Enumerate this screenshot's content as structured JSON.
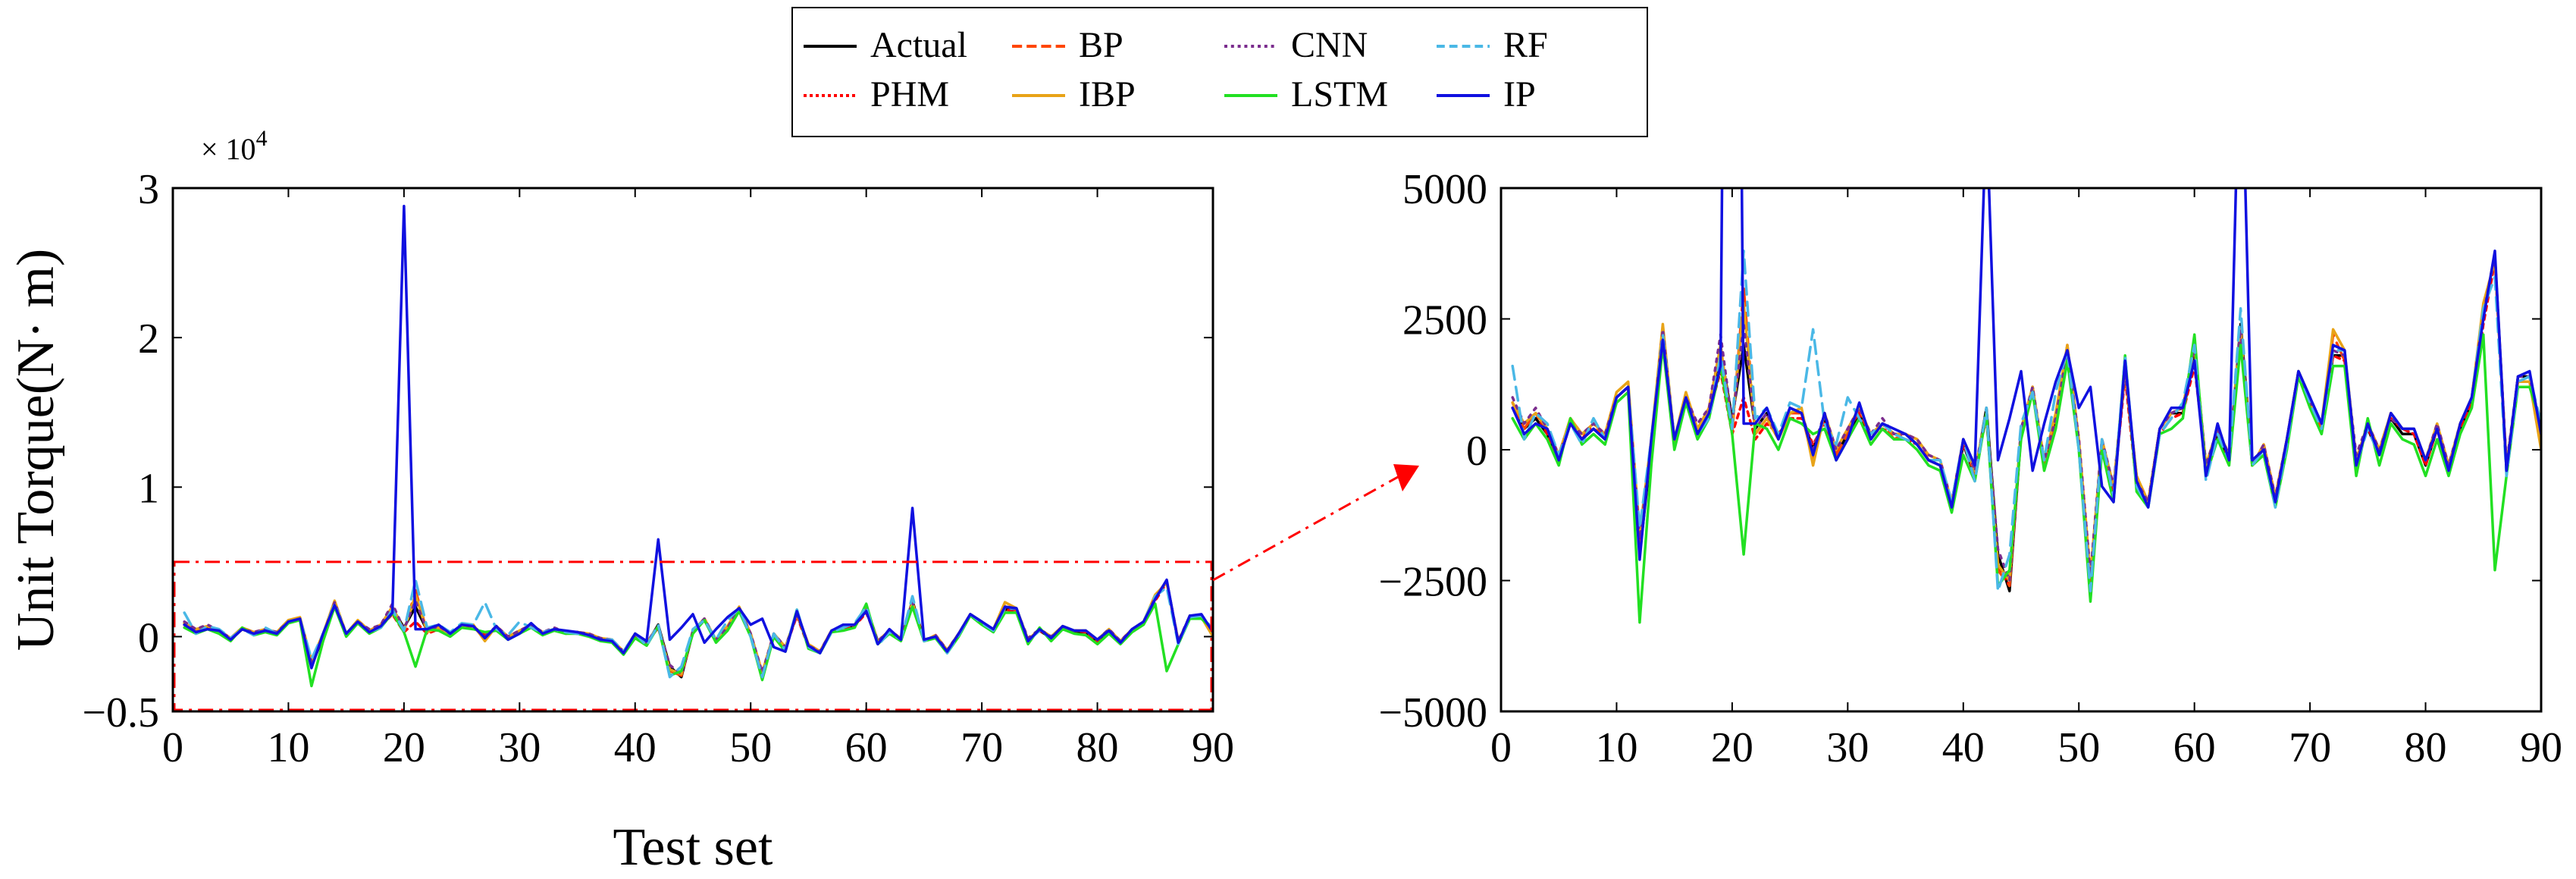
{
  "chart_data": [
    {
      "type": "line",
      "panel": "full",
      "xlabel": "Test set",
      "ylabel": "Unit Torque(N· m)",
      "y_multiplier": "× 10",
      "y_multiplier_exp": "4",
      "xlim": [
        0,
        90
      ],
      "ylim": [
        -5000,
        30000
      ],
      "xticks": [
        0,
        10,
        20,
        30,
        40,
        50,
        60,
        70,
        80,
        90
      ],
      "xtick_labels": [
        "0",
        "10",
        "20",
        "30",
        "40",
        "50",
        "60",
        "70",
        "80",
        "90"
      ],
      "yticks": [
        -5000,
        0,
        10000,
        20000,
        30000
      ],
      "ytick_labels": [
        "−0.5",
        "0",
        "1",
        "2",
        "3"
      ],
      "grid": false,
      "zoom_region": {
        "ymin": -5000,
        "ymax": 5000
      }
    },
    {
      "type": "line",
      "panel": "zoom",
      "xlim": [
        0,
        90
      ],
      "ylim": [
        -5000,
        5000
      ],
      "xticks": [
        0,
        10,
        20,
        30,
        40,
        50,
        60,
        70,
        80,
        90
      ],
      "xtick_labels": [
        "0",
        "10",
        "20",
        "30",
        "40",
        "50",
        "60",
        "70",
        "80",
        "90"
      ],
      "yticks": [
        -5000,
        -2500,
        0,
        2500,
        5000
      ],
      "ytick_labels": [
        "−5000",
        "−2500",
        "0",
        "2500",
        "5000"
      ],
      "grid": false
    }
  ],
  "shared_series": {
    "x": [
      1,
      2,
      3,
      4,
      5,
      6,
      7,
      8,
      9,
      10,
      11,
      12,
      13,
      14,
      15,
      16,
      17,
      18,
      19,
      20,
      21,
      22,
      23,
      24,
      25,
      26,
      27,
      28,
      29,
      30,
      31,
      32,
      33,
      34,
      35,
      36,
      37,
      38,
      39,
      40,
      41,
      42,
      43,
      44,
      45,
      46,
      47,
      48,
      49,
      50,
      51,
      52,
      53,
      54,
      55,
      56,
      57,
      58,
      59,
      60,
      61,
      62,
      63,
      64,
      65,
      66,
      67,
      68,
      69,
      70,
      71,
      72,
      73,
      74,
      75,
      76,
      77,
      78,
      79,
      80,
      81,
      82,
      83,
      84,
      85,
      86,
      87,
      88,
      89,
      90
    ],
    "series": [
      {
        "name": "Actual",
        "color": "#000000",
        "dash": "",
        "values": [
          800,
          400,
          600,
          300,
          -200,
          500,
          200,
          400,
          200,
          1000,
          1200,
          -2000,
          0,
          2200,
          100,
          1000,
          300,
          800,
          1900,
          600,
          2000,
          400,
          700,
          200,
          800,
          700,
          0,
          600,
          -100,
          300,
          700,
          200,
          500,
          300,
          300,
          100,
          -200,
          -300,
          -1100,
          100,
          -500,
          800,
          -2000,
          -2700,
          300,
          1200,
          -300,
          500,
          1900,
          100,
          -2600,
          100,
          -800,
          1500,
          -600,
          -1000,
          400,
          700,
          700,
          1800,
          -400,
          300,
          -200,
          2400,
          -200,
          0,
          -1000,
          100,
          1500,
          1000,
          400,
          1800,
          1800,
          -200,
          400,
          -100,
          600,
          300,
          300,
          -300,
          400,
          -400,
          400,
          900,
          2600,
          3700,
          -400,
          1400,
          1400,
          300
        ]
      },
      {
        "name": "PHM",
        "color": "#ff0000",
        "dash": "6,6",
        "values": [
          800,
          500,
          700,
          300,
          -200,
          500,
          200,
          500,
          300,
          1000,
          1200,
          -1800,
          100,
          2200,
          200,
          1000,
          400,
          700,
          1500,
          300,
          1000,
          200,
          500,
          300,
          600,
          600,
          100,
          500,
          0,
          400,
          700,
          300,
          400,
          300,
          200,
          100,
          -200,
          -300,
          -1000,
          100,
          -400,
          600,
          -2200,
          -2600,
          300,
          1200,
          -300,
          600,
          1900,
          200,
          -2400,
          200,
          -800,
          1400,
          -700,
          -1000,
          300,
          600,
          700,
          1600,
          -300,
          400,
          -200,
          2100,
          -300,
          100,
          -900,
          200,
          1500,
          900,
          500,
          1800,
          1700,
          -200,
          400,
          0,
          600,
          400,
          300,
          -300,
          400,
          -400,
          400,
          900,
          2400,
          3600,
          -300,
          1300,
          1300,
          300
        ]
      },
      {
        "name": "BP",
        "color": "#ff4500",
        "dash": "22,10",
        "values": [
          900,
          400,
          700,
          400,
          -100,
          600,
          300,
          400,
          300,
          1000,
          1200,
          -1900,
          100,
          2300,
          100,
          1000,
          400,
          800,
          2000,
          300,
          3100,
          300,
          600,
          200,
          700,
          700,
          -200,
          700,
          -100,
          300,
          800,
          200,
          500,
          200,
          300,
          200,
          -200,
          -300,
          -1100,
          200,
          -500,
          700,
          -2300,
          -2600,
          400,
          1100,
          -300,
          600,
          2000,
          100,
          -2500,
          100,
          -700,
          1500,
          -500,
          -1000,
          400,
          700,
          800,
          2000,
          -300,
          400,
          -100,
          2300,
          -300,
          100,
          -1000,
          200,
          1500,
          900,
          400,
          2200,
          1700,
          -200,
          500,
          0,
          700,
          400,
          400,
          -200,
          400,
          -300,
          500,
          1000,
          2700,
          3700,
          -300,
          1300,
          1300,
          400
        ]
      },
      {
        "name": "IBP",
        "color": "#e8a317",
        "dash": "",
        "values": [
          900,
          500,
          700,
          400,
          -100,
          600,
          300,
          500,
          300,
          1100,
          1300,
          -1600,
          200,
          2400,
          200,
          1100,
          400,
          800,
          2000,
          400,
          2800,
          300,
          600,
          200,
          700,
          800,
          -300,
          700,
          0,
          400,
          800,
          300,
          500,
          300,
          300,
          200,
          -100,
          -200,
          -1000,
          200,
          -400,
          700,
          -2200,
          -2500,
          400,
          1200,
          -200,
          700,
          2000,
          200,
          -2400,
          200,
          -700,
          1500,
          -500,
          -1000,
          400,
          700,
          800,
          2000,
          -300,
          400,
          -100,
          2300,
          -300,
          100,
          -900,
          200,
          1500,
          900,
          500,
          2300,
          1900,
          -200,
          500,
          0,
          700,
          400,
          400,
          -200,
          500,
          -300,
          500,
          1000,
          2800,
          3600,
          -300,
          1300,
          1300,
          0
        ]
      },
      {
        "name": "CNN",
        "color": "#7b2d8e",
        "dash": "4,8",
        "values": [
          1000,
          500,
          800,
          400,
          -100,
          500,
          300,
          500,
          300,
          1000,
          1200,
          -1700,
          100,
          2300,
          200,
          1000,
          500,
          800,
          2200,
          500,
          2400,
          400,
          700,
          200,
          800,
          700,
          0,
          700,
          0,
          400,
          800,
          300,
          600,
          300,
          300,
          200,
          -100,
          -200,
          -1000,
          200,
          -400,
          700,
          -1900,
          -2500,
          400,
          1200,
          -200,
          600,
          1900,
          200,
          -2400,
          200,
          -700,
          1500,
          -600,
          -1000,
          400,
          700,
          800,
          2000,
          -300,
          400,
          -100,
          2300,
          -300,
          100,
          -900,
          200,
          1500,
          900,
          500,
          1900,
          1800,
          -100,
          500,
          0,
          600,
          400,
          400,
          -200,
          500,
          -300,
          500,
          1000,
          2600,
          3700,
          -300,
          1400,
          1400,
          400
        ]
      },
      {
        "name": "LSTM",
        "color": "#22e022",
        "dash": "",
        "values": [
          600,
          200,
          500,
          200,
          -300,
          600,
          100,
          300,
          100,
          900,
          1100,
          -3300,
          -300,
          2000,
          0,
          900,
          200,
          600,
          1600,
          300,
          -2000,
          500,
          400,
          0,
          600,
          500,
          300,
          400,
          -200,
          200,
          600,
          100,
          400,
          200,
          200,
          0,
          -300,
          -400,
          -1200,
          -100,
          -600,
          700,
          -2600,
          -2300,
          200,
          1100,
          -400,
          400,
          1700,
          0,
          -2900,
          0,
          -1000,
          1800,
          -800,
          -1100,
          300,
          400,
          600,
          2200,
          -500,
          200,
          -300,
          2000,
          -300,
          -100,
          -1100,
          0,
          1400,
          800,
          300,
          1600,
          1600,
          -500,
          600,
          -300,
          500,
          200,
          100,
          -500,
          200,
          -500,
          300,
          800,
          2200,
          -2300,
          -500,
          1200,
          1200,
          500
        ]
      },
      {
        "name": "RF",
        "color": "#4ab8e6",
        "dash": "18,10",
        "values": [
          1600,
          200,
          700,
          500,
          -100,
          500,
          100,
          600,
          200,
          1000,
          1200,
          -1500,
          200,
          2200,
          200,
          1000,
          300,
          600,
          1800,
          400,
          3800,
          600,
          800,
          300,
          900,
          800,
          2300,
          500,
          100,
          1000,
          600,
          300,
          500,
          300,
          200,
          100,
          -200,
          -200,
          -1000,
          200,
          -600,
          800,
          -2700,
          -2000,
          500,
          1100,
          -200,
          1100,
          1900,
          0,
          -2700,
          200,
          -900,
          1800,
          -700,
          -1100,
          300,
          600,
          900,
          2000,
          -600,
          300,
          -200,
          2700,
          -300,
          0,
          -1100,
          100,
          1500,
          900,
          400,
          1900,
          1900,
          -300,
          400,
          -100,
          700,
          400,
          400,
          -200,
          400,
          -400,
          500,
          1000,
          2700,
          3300,
          -500,
          1300,
          1400,
          500
        ]
      },
      {
        "name": "IP",
        "color": "#1010e0",
        "dash": "",
        "values": [
          800,
          300,
          500,
          400,
          -200,
          500,
          200,
          400,
          200,
          1000,
          1200,
          -2100,
          200,
          2100,
          200,
          1000,
          300,
          700,
          1600,
          28800,
          500,
          500,
          800,
          200,
          800,
          700,
          -100,
          700,
          -200,
          200,
          900,
          200,
          500,
          400,
          300,
          100,
          -200,
          -300,
          -1100,
          200,
          -300,
          6500,
          -200,
          600,
          1500,
          -400,
          500,
          1300,
          1900,
          800,
          1200,
          -700,
          -1000,
          1700,
          -600,
          -1100,
          400,
          800,
          800,
          1700,
          -500,
          500,
          -200,
          8600,
          -200,
          0,
          -1000,
          200,
          1500,
          1000,
          500,
          2000,
          1900,
          -300,
          500,
          -100,
          700,
          400,
          400,
          -200,
          400,
          -400,
          500,
          1000,
          2500,
          3800,
          -400,
          1400,
          1500,
          300
        ]
      }
    ]
  },
  "legend": {
    "placement": "top-center",
    "entries": [
      "Actual",
      "BP",
      "CNN",
      "RF",
      "PHM",
      "IBP",
      "LSTM",
      "IP"
    ]
  }
}
